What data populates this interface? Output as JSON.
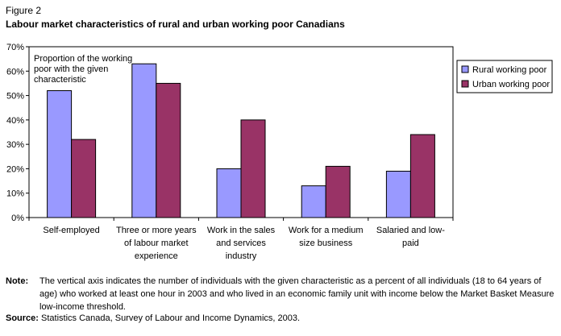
{
  "figure": {
    "label": "Figure 2",
    "title": "Labour market characteristics of rural and urban working poor Canadians"
  },
  "chart_data": {
    "type": "bar",
    "categories": [
      [
        "Self-employed"
      ],
      [
        "Three or more years",
        "of labour market",
        "experience"
      ],
      [
        "Work in the sales",
        "and services",
        "industry"
      ],
      [
        "Work for a medium",
        "size business"
      ],
      [
        "Salaried and low-",
        "paid"
      ]
    ],
    "series": [
      {
        "name": "Rural working poor",
        "color": "#9999ff",
        "values": [
          52,
          63,
          20,
          13,
          19
        ]
      },
      {
        "name": "Urban working poor",
        "color": "#993366",
        "values": [
          32,
          55,
          40,
          21,
          34
        ]
      }
    ],
    "ylim": [
      0,
      70
    ],
    "yticks": [
      "0%",
      "10%",
      "20%",
      "30%",
      "40%",
      "50%",
      "60%",
      "70%"
    ],
    "annotation": [
      "Proportion of the working",
      "poor with the given",
      "characteristic"
    ],
    "legend_position": "top-right",
    "grid": false
  },
  "note": {
    "label": "Note:",
    "text": "The vertical axis indicates the number of individuals with the given characteristic as a percent of all individuals (18 to 64 years of age) who worked at least one hour in 2003 and who lived in an economic family unit with income below the Market Basket Measure low-income threshold."
  },
  "source": {
    "label": "Source:",
    "text": "Statistics Canada, Survey of Labour and Income Dynamics, 2003."
  }
}
